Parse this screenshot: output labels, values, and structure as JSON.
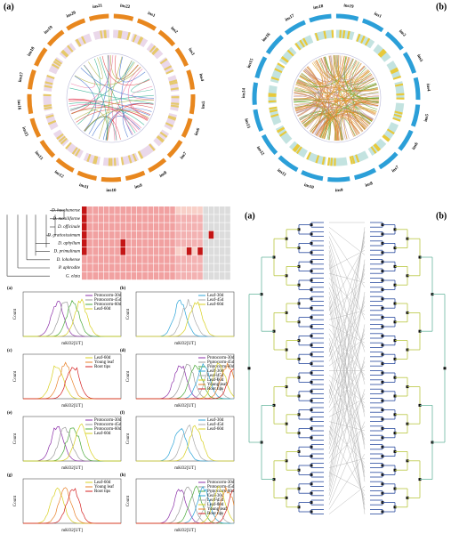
{
  "circos_a": {
    "label": "(a)",
    "chromosomes": [
      "ins1",
      "ins2",
      "ins3",
      "ins4",
      "ins5",
      "ins6",
      "ins7",
      "ins8",
      "ins9",
      "ins10",
      "ins11",
      "ins12",
      "ins13",
      "ins15",
      "ins16",
      "ins17",
      "ins18",
      "ins19",
      "ins20",
      "ins21",
      "ins22"
    ]
  },
  "circos_b": {
    "label": "(b)",
    "chromosomes": [
      "ins1",
      "ins2",
      "ins3",
      "ins4",
      "ins5",
      "ins6",
      "ins7",
      "ins8",
      "ins9",
      "ins10",
      "ins11",
      "ins12",
      "ins13",
      "ins14",
      "ins15",
      "ins16",
      "ins17",
      "ins18",
      "ins19"
    ]
  },
  "heatmap": {
    "species": [
      "D. huoshanense",
      "D. moniliforme",
      "D. officinale",
      "D. gratiosissimum",
      "D. aphyllum",
      "D. primulinum",
      "D. lohohense",
      "P. aphrodite",
      "G. elata"
    ]
  },
  "histograms": [
    {
      "label": "(a)",
      "y_label": "Count",
      "x_label": "mKO2[UT]",
      "legend": [
        "Protocorm-30d",
        "Protocorm-45d",
        "Protocorm-60d",
        "Leaf-60d"
      ]
    },
    {
      "label": "(b)",
      "y_label": "Count",
      "x_label": "mKO2[UT]",
      "legend": [
        "Leaf-30d",
        "Leaf-45d",
        "Leaf-60d"
      ]
    },
    {
      "label": "(c)",
      "y_label": "Count",
      "x_label": "mKO2[UT]",
      "legend": [
        "Leaf-60d",
        "Young leaf",
        "Root tips"
      ]
    },
    {
      "label": "(d)",
      "y_label": "Count",
      "x_label": "mKO2[UT]",
      "legend": [
        "Protocorm-30d",
        "Protocorm-45d",
        "Protocorm-60d",
        "Leaf-30d",
        "Leaf-45d",
        "Leaf-60d",
        "Young leaf",
        "Root tips"
      ]
    },
    {
      "label": "(e)",
      "y_label": "Count",
      "x_label": "mKO2[UT]",
      "legend": [
        "Protocorm-30d",
        "Protocorm-45d",
        "Protocorm-60d",
        "Leaf-60d"
      ]
    },
    {
      "label": "(f)",
      "y_label": "Count",
      "x_label": "mKO2[UT]",
      "legend": [
        "Leaf-30d",
        "Leaf-45d",
        "Leaf-60d"
      ]
    },
    {
      "label": "(g)",
      "y_label": "Count",
      "x_label": "mKO2[UT]",
      "legend": [
        "Leaf-60d",
        "Young leaf",
        "Root tips"
      ]
    },
    {
      "label": "(h)",
      "y_label": "Count",
      "x_label": "mKO2[UT]",
      "legend": [
        "Protocorm-30d",
        "Protocorm-45d",
        "Protocorm-60d",
        "Leaf-30d",
        "Leaf-45d",
        "Leaf-60d",
        "Young leaf",
        "Root tips"
      ]
    }
  ],
  "tree": {
    "labels": [
      "(a)",
      "(b)"
    ]
  }
}
